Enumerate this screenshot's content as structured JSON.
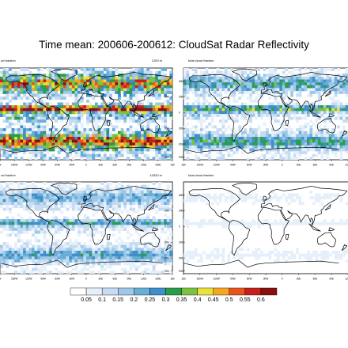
{
  "figure": {
    "title": "Time mean: 200606-200612: CloudSat Radar Reflectivity"
  },
  "panels": [
    {
      "id": "tl",
      "left_label": "ud fraction",
      "right_label": "1200 m",
      "intensity": 1.0
    },
    {
      "id": "tr",
      "left_label": "total cloud fraction",
      "right_label": "",
      "intensity": 0.55
    },
    {
      "id": "bl",
      "left_label": "ud fraction",
      "right_label": "10320 m",
      "intensity": 0.45
    },
    {
      "id": "br",
      "left_label": "total cloud fraction",
      "right_label": "",
      "intensity": 0.12
    }
  ],
  "lat_ticks": [
    "60N",
    "30N",
    "0",
    "30S",
    "60S",
    "90S"
  ],
  "left_lon_ticks": [
    "W",
    "150W",
    "120W",
    "90W",
    "60W",
    "30W",
    "0",
    "30E",
    "60E",
    "90E",
    "120E",
    "150E",
    "180"
  ],
  "right_lon_ticks": [
    "180",
    "150W",
    "120W",
    "90W",
    "60W",
    "30W",
    "0",
    "30E",
    "60E",
    "90E",
    "120E"
  ],
  "colorbar": {
    "labels": [
      "0.05",
      "0.1",
      "0.15",
      "0.2",
      "0.25",
      "0.3",
      "0.35",
      "0.4",
      "0.45",
      "0.5",
      "0.55",
      "0.6"
    ],
    "colors": [
      "#ffffff",
      "#e6f0fa",
      "#c6dcf2",
      "#9ec8e8",
      "#6aaed8",
      "#3f8fc8",
      "#2a9d4a",
      "#7cc242",
      "#e8e23a",
      "#f5a623",
      "#e8541c",
      "#c81e1e",
      "#8a0f0f"
    ]
  }
}
